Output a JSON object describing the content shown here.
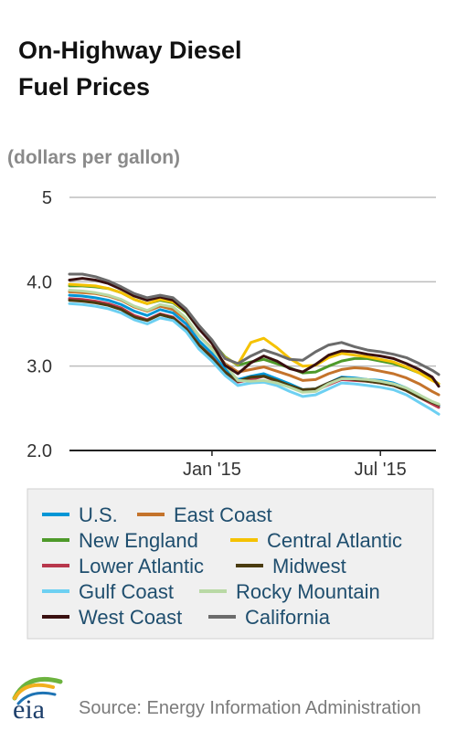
{
  "header": {
    "title_line1": "On-Highway Diesel",
    "title_line2": "Fuel Prices",
    "units": "(dollars per gallon)"
  },
  "footer": {
    "logo_text": "eia",
    "source": "Source: Energy Information Administration"
  },
  "chart_data": {
    "type": "line",
    "title": "On-Highway Diesel Fuel Prices",
    "ylabel": "(dollars per gallon)",
    "xlabel": "",
    "ylim": [
      2.0,
      5.0
    ],
    "yticks": [
      {
        "v": 5,
        "label": "5"
      },
      {
        "v": 4,
        "label": "4.0"
      },
      {
        "v": 3,
        "label": "3.0"
      },
      {
        "v": 2,
        "label": "2.0"
      }
    ],
    "xlim": [
      "2014-08-04",
      "2015-09-07"
    ],
    "xticks": [
      {
        "v": "2015-01-05",
        "label": "Jan '15"
      },
      {
        "v": "2015-07-06",
        "label": "Jul '15"
      }
    ],
    "grid": true,
    "legend_position": "bottom",
    "x": [
      "2014-08-04",
      "2014-08-18",
      "2014-09-01",
      "2014-09-15",
      "2014-09-29",
      "2014-10-13",
      "2014-10-27",
      "2014-11-10",
      "2014-11-24",
      "2014-12-08",
      "2014-12-22",
      "2015-01-05",
      "2015-01-19",
      "2015-02-02",
      "2015-02-16",
      "2015-03-02",
      "2015-03-16",
      "2015-03-30",
      "2015-04-13",
      "2015-04-27",
      "2015-05-11",
      "2015-05-25",
      "2015-06-08",
      "2015-06-22",
      "2015-07-06",
      "2015-07-20",
      "2015-08-03",
      "2015-08-17",
      "2015-08-31",
      "2015-09-07"
    ],
    "series": [
      {
        "name": "U.S.",
        "color": "#0096d6",
        "values": [
          3.84,
          3.83,
          3.81,
          3.78,
          3.73,
          3.65,
          3.6,
          3.67,
          3.63,
          3.5,
          3.3,
          3.15,
          2.97,
          2.84,
          2.88,
          2.91,
          2.85,
          2.79,
          2.72,
          2.73,
          2.8,
          2.87,
          2.86,
          2.84,
          2.83,
          2.8,
          2.74,
          2.66,
          2.56,
          2.52
        ]
      },
      {
        "name": "East Coast",
        "color": "#c4732b",
        "values": [
          3.88,
          3.87,
          3.86,
          3.83,
          3.78,
          3.7,
          3.65,
          3.71,
          3.67,
          3.55,
          3.36,
          3.21,
          3.03,
          2.93,
          2.96,
          2.99,
          2.94,
          2.89,
          2.83,
          2.84,
          2.91,
          2.96,
          2.98,
          2.97,
          2.94,
          2.91,
          2.86,
          2.79,
          2.7,
          2.66
        ]
      },
      {
        "name": "New England",
        "color": "#4e9a2a",
        "values": [
          3.95,
          3.95,
          3.94,
          3.92,
          3.87,
          3.79,
          3.74,
          3.78,
          3.75,
          3.64,
          3.44,
          3.29,
          3.11,
          3.01,
          3.05,
          3.08,
          3.03,
          2.98,
          2.92,
          2.93,
          3.0,
          3.06,
          3.09,
          3.09,
          3.06,
          3.03,
          2.98,
          2.92,
          2.84,
          2.79
        ]
      },
      {
        "name": "Central Atlantic",
        "color": "#f5c200",
        "values": [
          3.97,
          3.96,
          3.95,
          3.92,
          3.87,
          3.79,
          3.74,
          3.79,
          3.76,
          3.65,
          3.45,
          3.29,
          3.1,
          3.02,
          3.28,
          3.33,
          3.22,
          3.09,
          3.0,
          3.01,
          3.1,
          3.15,
          3.13,
          3.11,
          3.08,
          3.05,
          2.99,
          2.92,
          2.83,
          2.79
        ]
      },
      {
        "name": "Lower Atlantic",
        "color": "#b8374c",
        "values": [
          3.8,
          3.79,
          3.77,
          3.74,
          3.69,
          3.6,
          3.55,
          3.62,
          3.58,
          3.45,
          3.25,
          3.11,
          2.93,
          2.81,
          2.84,
          2.88,
          2.82,
          2.76,
          2.7,
          2.71,
          2.78,
          2.84,
          2.83,
          2.82,
          2.8,
          2.77,
          2.71,
          2.63,
          2.55,
          2.51
        ]
      },
      {
        "name": "Midwest",
        "color": "#4a3c10",
        "values": [
          3.78,
          3.77,
          3.75,
          3.72,
          3.67,
          3.58,
          3.54,
          3.61,
          3.57,
          3.44,
          3.25,
          3.1,
          2.93,
          2.82,
          2.87,
          2.88,
          2.83,
          2.77,
          2.72,
          2.73,
          2.8,
          2.86,
          2.84,
          2.82,
          2.8,
          2.77,
          2.71,
          2.63,
          2.57,
          2.54
        ]
      },
      {
        "name": "Gulf Coast",
        "color": "#6dd0f2",
        "values": [
          3.74,
          3.73,
          3.71,
          3.68,
          3.63,
          3.55,
          3.5,
          3.57,
          3.54,
          3.41,
          3.2,
          3.06,
          2.89,
          2.77,
          2.8,
          2.81,
          2.77,
          2.7,
          2.64,
          2.66,
          2.73,
          2.8,
          2.79,
          2.77,
          2.75,
          2.72,
          2.66,
          2.57,
          2.48,
          2.43
        ]
      },
      {
        "name": "Rocky Mountain",
        "color": "#b9d9a5",
        "values": [
          3.9,
          3.89,
          3.87,
          3.84,
          3.79,
          3.71,
          3.66,
          3.73,
          3.7,
          3.57,
          3.36,
          3.2,
          3.02,
          2.83,
          2.82,
          2.83,
          2.8,
          2.75,
          2.69,
          2.7,
          2.79,
          2.85,
          2.85,
          2.84,
          2.82,
          2.79,
          2.74,
          2.66,
          2.58,
          2.55
        ]
      },
      {
        "name": "West Coast",
        "color": "#3a1010",
        "values": [
          4.02,
          4.04,
          4.02,
          3.98,
          3.91,
          3.83,
          3.78,
          3.82,
          3.78,
          3.65,
          3.44,
          3.27,
          3.01,
          2.91,
          3.04,
          3.12,
          3.06,
          2.97,
          2.93,
          3.02,
          3.13,
          3.18,
          3.17,
          3.14,
          3.12,
          3.09,
          3.03,
          2.96,
          2.87,
          2.76
        ]
      },
      {
        "name": "California",
        "color": "#6b6b6b",
        "values": [
          4.09,
          4.09,
          4.06,
          4.01,
          3.94,
          3.86,
          3.81,
          3.84,
          3.81,
          3.68,
          3.48,
          3.31,
          3.09,
          3.03,
          3.12,
          3.19,
          3.14,
          3.08,
          3.07,
          3.17,
          3.25,
          3.28,
          3.23,
          3.19,
          3.17,
          3.14,
          3.1,
          3.03,
          2.95,
          2.9
        ]
      }
    ]
  }
}
